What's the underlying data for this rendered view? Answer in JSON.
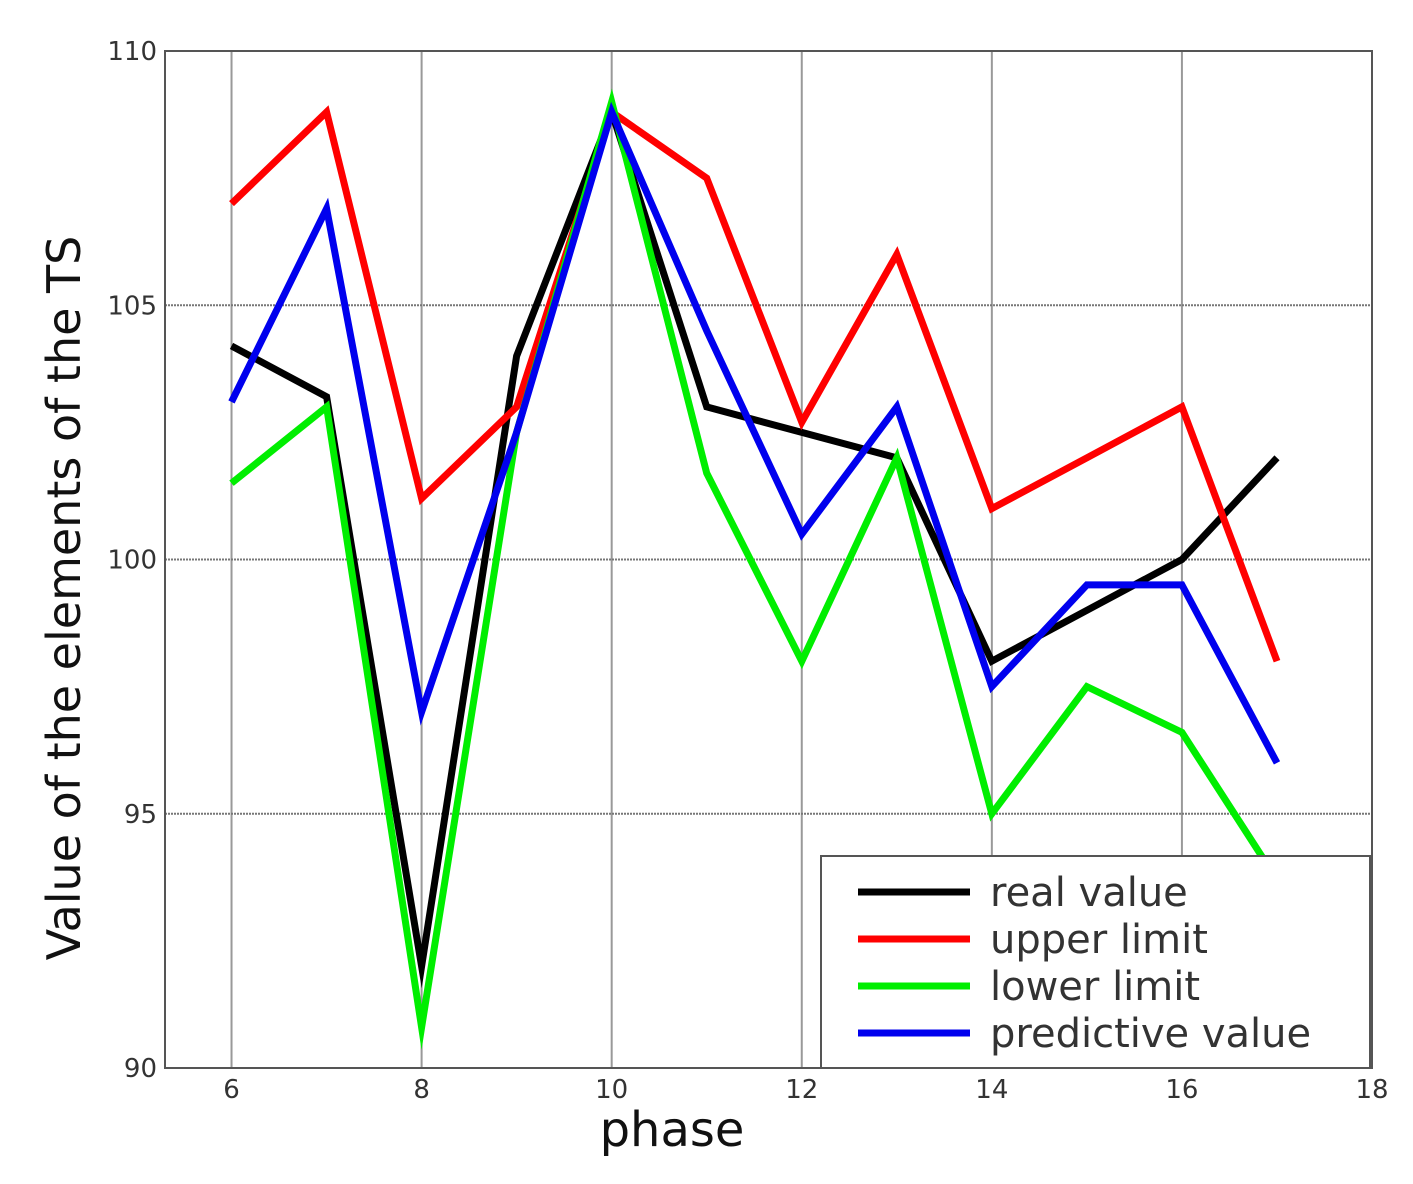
{
  "chart_data": {
    "type": "line",
    "title": "",
    "xlabel": "phase",
    "ylabel": "Value of the elements of the TS",
    "xlim": [
      5.3,
      18
    ],
    "ylim": [
      90,
      110
    ],
    "xticks": [
      6,
      8,
      10,
      12,
      14,
      16,
      18
    ],
    "yticks": [
      90,
      95,
      100,
      105,
      110
    ],
    "grid": true,
    "legend_position": "bottom-right",
    "series": [
      {
        "name": "real value",
        "color": "#000000",
        "x": [
          6,
          7,
          8,
          9,
          10,
          11,
          12,
          13,
          14,
          15,
          16,
          17
        ],
        "y": [
          104.2,
          103.2,
          92.0,
          104.0,
          108.8,
          103.0,
          102.5,
          102.0,
          98.0,
          99.0,
          100.0,
          102.0
        ]
      },
      {
        "name": "upper limit",
        "color": "#ff0000",
        "x": [
          6,
          7,
          8,
          9,
          10,
          11,
          12,
          13,
          14,
          15,
          16,
          17
        ],
        "y": [
          107.0,
          108.8,
          101.2,
          103.0,
          108.8,
          107.5,
          102.7,
          106.0,
          101.0,
          102.0,
          103.0,
          98.0
        ]
      },
      {
        "name": "lower limit",
        "color": "#00ee00",
        "x": [
          6,
          7,
          8,
          9,
          10,
          11,
          12,
          13,
          14,
          15,
          16,
          17
        ],
        "y": [
          101.5,
          103.0,
          90.8,
          102.5,
          109.0,
          101.7,
          98.0,
          102.0,
          95.0,
          97.5,
          96.6,
          93.7
        ]
      },
      {
        "name": "predictive value",
        "color": "#0000ee",
        "x": [
          6,
          7,
          8,
          9,
          10,
          11,
          12,
          13,
          14,
          15,
          16,
          17
        ],
        "y": [
          103.1,
          106.9,
          97.0,
          102.5,
          108.8,
          104.5,
          100.5,
          103.0,
          97.5,
          99.5,
          99.5,
          96.0
        ]
      }
    ]
  }
}
